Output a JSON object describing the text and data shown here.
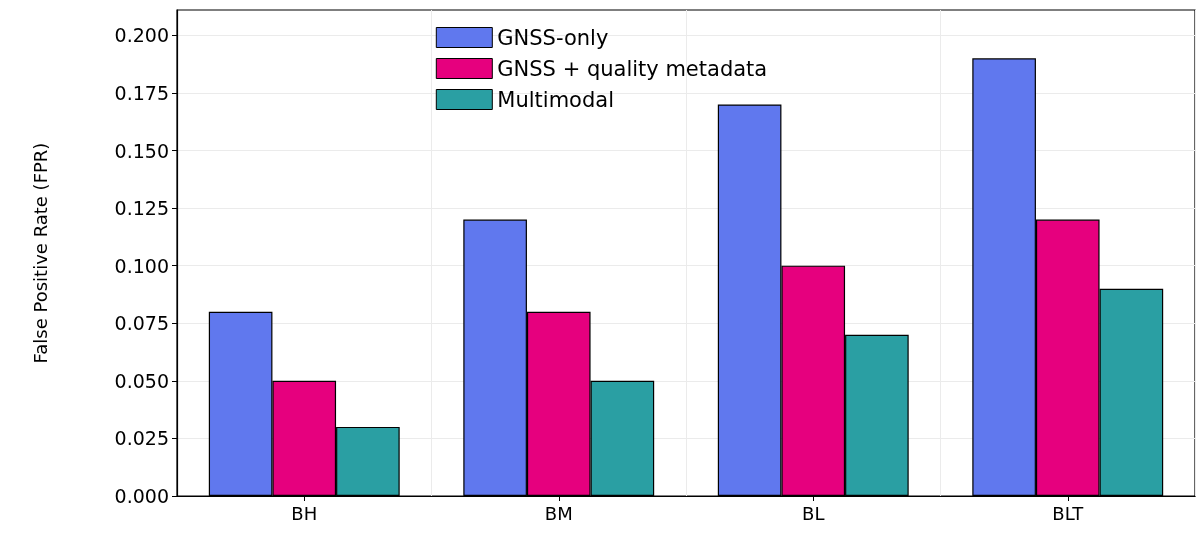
{
  "chart_data": {
    "type": "bar",
    "ylabel": "False Positive Rate (FPR)",
    "categories": [
      "BH",
      "BM",
      "BL",
      "BLT"
    ],
    "series": [
      {
        "name": "GNSS-only",
        "color": "#6078ee",
        "values": [
          0.08,
          0.12,
          0.17,
          0.19
        ]
      },
      {
        "name": "GNSS + quality metadata",
        "color": "#e6007e",
        "values": [
          0.05,
          0.08,
          0.1,
          0.12
        ]
      },
      {
        "name": "Multimodal",
        "color": "#2a9fa3",
        "values": [
          0.03,
          0.05,
          0.07,
          0.09
        ]
      }
    ],
    "ylim": [
      0,
      0.211
    ],
    "yticks": [
      {
        "value": 0,
        "label": "0.000"
      },
      {
        "value": 0.025,
        "label": "0.025"
      },
      {
        "value": 0.05,
        "label": "0.050"
      },
      {
        "value": 0.075,
        "label": "0.075"
      },
      {
        "value": 0.1,
        "label": "0.100"
      },
      {
        "value": 0.125,
        "label": "0.125"
      },
      {
        "value": 0.15,
        "label": "0.150"
      },
      {
        "value": 0.175,
        "label": "0.175"
      },
      {
        "value": 0.2,
        "label": "0.200"
      }
    ],
    "grid": true,
    "legend": "top"
  }
}
